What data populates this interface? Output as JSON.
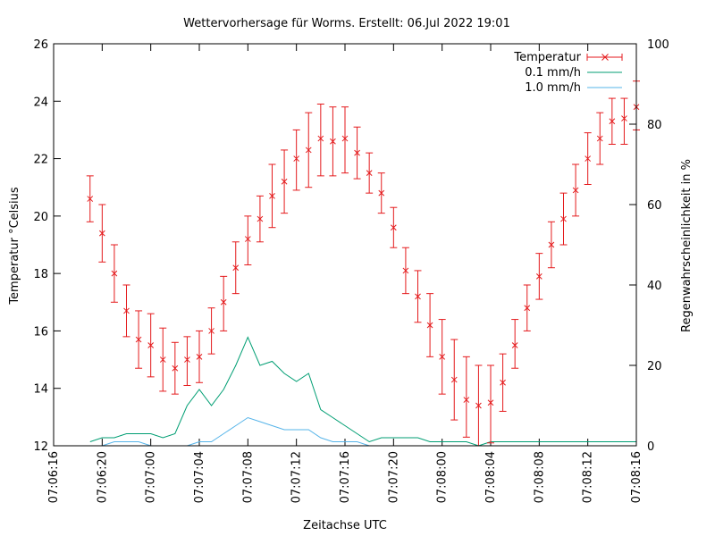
{
  "chart_data": {
    "type": "line",
    "title": "Wettervorhersage für Worms. Erstellt: 06.Jul 2022 19:01",
    "xlabel": "Zeitachse UTC",
    "ylabel": "Temperatur °Celsius",
    "y2label": "Regenwahrscheinlichkeit in %",
    "xlim_hours": [
      0,
      48
    ],
    "ylim": [
      12,
      26
    ],
    "y2lim": [
      0,
      100
    ],
    "x_ticks": [
      {
        "hour": 0,
        "label": "07:06:16"
      },
      {
        "hour": 4,
        "label": "07:06:20"
      },
      {
        "hour": 8,
        "label": "07:07:00"
      },
      {
        "hour": 12,
        "label": "07:07:04"
      },
      {
        "hour": 16,
        "label": "07:07:08"
      },
      {
        "hour": 20,
        "label": "07:07:12"
      },
      {
        "hour": 24,
        "label": "07:07:16"
      },
      {
        "hour": 28,
        "label": "07:07:20"
      },
      {
        "hour": 32,
        "label": "07:08:00"
      },
      {
        "hour": 36,
        "label": "07:08:04"
      },
      {
        "hour": 40,
        "label": "07:08:08"
      },
      {
        "hour": 44,
        "label": "07:08:12"
      },
      {
        "hour": 48,
        "label": "07:08:16"
      }
    ],
    "y_ticks": [
      12,
      14,
      16,
      18,
      20,
      22,
      24,
      26
    ],
    "y2_ticks": [
      0,
      20,
      40,
      60,
      80,
      100
    ],
    "legend_position": "top-right",
    "temperature": {
      "name": "Temperatur",
      "color": "#e41a1c",
      "x": [
        3,
        4,
        5,
        6,
        7,
        8,
        9,
        10,
        11,
        12,
        13,
        14,
        15,
        16,
        17,
        18,
        19,
        20,
        21,
        22,
        23,
        24,
        25,
        26,
        27,
        28,
        29,
        30,
        31,
        32,
        33,
        34,
        35,
        36,
        37,
        38,
        39,
        40,
        41,
        42,
        43,
        44,
        45,
        46,
        47,
        48
      ],
      "y": [
        20.6,
        19.4,
        18.0,
        16.7,
        15.7,
        15.5,
        15.0,
        14.7,
        15.0,
        15.1,
        16.0,
        17.0,
        18.2,
        19.2,
        19.9,
        20.7,
        21.2,
        22.0,
        22.3,
        22.7,
        22.6,
        22.7,
        22.2,
        21.5,
        20.8,
        19.6,
        18.1,
        17.2,
        16.2,
        15.1,
        14.3,
        13.6,
        13.4,
        13.5,
        14.2,
        15.5,
        16.8,
        17.9,
        19.0,
        19.9,
        20.9,
        22.0,
        22.7,
        23.3,
        23.4,
        23.8
      ],
      "err_low": [
        19.8,
        18.4,
        17.0,
        15.8,
        14.7,
        14.4,
        13.9,
        13.8,
        14.1,
        14.2,
        15.2,
        16.0,
        17.3,
        18.3,
        19.1,
        19.6,
        20.1,
        20.9,
        21.0,
        21.4,
        21.4,
        21.5,
        21.3,
        20.8,
        20.1,
        18.9,
        17.3,
        16.3,
        15.1,
        13.8,
        12.9,
        12.3,
        12.0,
        12.1,
        13.2,
        14.7,
        16.0,
        17.1,
        18.2,
        19.0,
        20.0,
        21.1,
        21.8,
        22.5,
        22.5,
        23.0
      ],
      "err_high": [
        21.4,
        20.4,
        19.0,
        17.6,
        16.7,
        16.6,
        16.1,
        15.6,
        15.8,
        16.0,
        16.8,
        17.9,
        19.1,
        20.0,
        20.7,
        21.8,
        22.3,
        23.0,
        23.6,
        23.9,
        23.8,
        23.8,
        23.1,
        22.2,
        21.5,
        20.3,
        18.9,
        18.1,
        17.3,
        16.4,
        15.7,
        15.1,
        14.8,
        14.8,
        15.2,
        16.4,
        17.6,
        18.7,
        19.8,
        20.8,
        21.8,
        22.9,
        23.6,
        24.1,
        24.1,
        24.7
      ]
    },
    "rain_01": {
      "name": "0.1 mm/h",
      "color": "#009e73",
      "x": [
        3,
        4,
        5,
        6,
        7,
        8,
        9,
        10,
        11,
        12,
        13,
        14,
        15,
        16,
        17,
        18,
        19,
        20,
        21,
        22,
        23,
        24,
        25,
        26,
        27,
        28,
        29,
        30,
        31,
        32,
        33,
        34,
        35,
        36,
        37,
        38,
        39,
        40,
        41,
        42,
        43,
        44,
        45,
        46,
        47,
        48
      ],
      "y": [
        1,
        2,
        2,
        3,
        3,
        3,
        2,
        3,
        10,
        14,
        10,
        14,
        20,
        27,
        20,
        21,
        18,
        16,
        18,
        9,
        7,
        5,
        3,
        1,
        2,
        2,
        2,
        2,
        1,
        1,
        1,
        1,
        0,
        1,
        1,
        1,
        1,
        1,
        1,
        1,
        1,
        1,
        1,
        1,
        1,
        1
      ]
    },
    "rain_10": {
      "name": "1.0 mm/h",
      "color": "#56b4e9",
      "x": [
        4,
        5,
        6,
        7,
        8,
        9,
        10,
        11,
        12,
        13,
        14,
        15,
        16,
        17,
        18,
        19,
        20,
        21,
        22,
        23,
        24,
        25,
        26,
        27,
        28,
        29,
        30,
        31,
        32,
        33,
        34,
        35,
        36,
        37,
        38,
        39,
        40,
        41,
        42,
        43,
        44,
        45,
        46,
        47,
        48
      ],
      "y": [
        0,
        1,
        1,
        1,
        0,
        0,
        0,
        0,
        1,
        1,
        3,
        5,
        7,
        6,
        5,
        4,
        4,
        4,
        2,
        1,
        1,
        1,
        0,
        0,
        0,
        0,
        0,
        0,
        0,
        0,
        0,
        0,
        0,
        0,
        0,
        0,
        0,
        0,
        0,
        0,
        0,
        0,
        0,
        0,
        0
      ]
    }
  }
}
